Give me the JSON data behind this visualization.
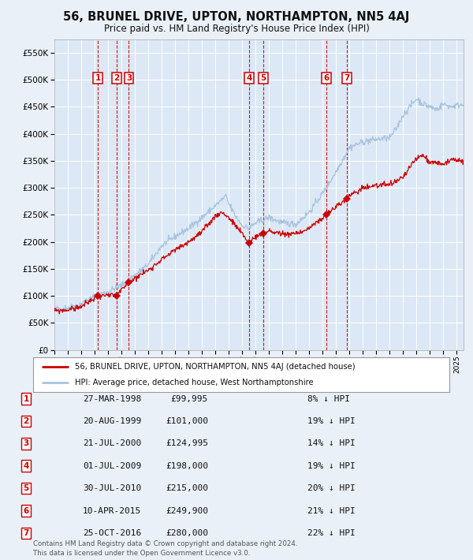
{
  "title": "56, BRUNEL DRIVE, UPTON, NORTHAMPTON, NN5 4AJ",
  "subtitle": "Price paid vs. HM Land Registry's House Price Index (HPI)",
  "legend_line1": "56, BRUNEL DRIVE, UPTON, NORTHAMPTON, NN5 4AJ (detached house)",
  "legend_line2": "HPI: Average price, detached house, West Northamptonshire",
  "footnote1": "Contains HM Land Registry data © Crown copyright and database right 2024.",
  "footnote2": "This data is licensed under the Open Government Licence v3.0.",
  "transactions": [
    {
      "id": 1,
      "date": "27-MAR-1998",
      "price": 99995,
      "pct": "8%",
      "year_x": 1998.23
    },
    {
      "id": 2,
      "date": "20-AUG-1999",
      "price": 101000,
      "pct": "19%",
      "year_x": 1999.63
    },
    {
      "id": 3,
      "date": "21-JUL-2000",
      "price": 124995,
      "pct": "14%",
      "year_x": 2000.55
    },
    {
      "id": 4,
      "date": "01-JUL-2009",
      "price": 198000,
      "pct": "19%",
      "year_x": 2009.5
    },
    {
      "id": 5,
      "date": "30-JUL-2010",
      "price": 215000,
      "pct": "20%",
      "year_x": 2010.58
    },
    {
      "id": 6,
      "date": "10-APR-2015",
      "price": 249900,
      "pct": "21%",
      "year_x": 2015.27
    },
    {
      "id": 7,
      "date": "25-OCT-2016",
      "price": 280000,
      "pct": "22%",
      "year_x": 2016.82
    }
  ],
  "hpi_color": "#a8c4e0",
  "price_color": "#cc0000",
  "dashed_color": "#cc0000",
  "bg_color": "#eaf0f8",
  "plot_bg": "#dce8f5",
  "grid_color": "#ffffff",
  "box_color": "#cc0000",
  "ylim": [
    0,
    575000
  ],
  "xlim_start": 1995.0,
  "xlim_end": 2025.5,
  "hpi_anchors_x": [
    1995,
    1996,
    1997,
    1998,
    1999,
    2000,
    2001,
    2002,
    2003,
    2004,
    2005,
    2006,
    2007,
    2007.8,
    2008,
    2008.5,
    2009,
    2009.5,
    2010,
    2010.5,
    2011,
    2012,
    2013,
    2014,
    2015,
    2016,
    2017,
    2018,
    2019,
    2020,
    2020.5,
    2021,
    2021.5,
    2022,
    2022.5,
    2023,
    2023.5,
    2024,
    2024.5,
    2025.5
  ],
  "hpi_anchors_y": [
    75000,
    78000,
    85000,
    100000,
    108000,
    120000,
    138000,
    158000,
    193000,
    210000,
    225000,
    245000,
    267000,
    285000,
    270000,
    248000,
    230000,
    225000,
    235000,
    240000,
    245000,
    235000,
    233000,
    255000,
    290000,
    330000,
    375000,
    385000,
    390000,
    392000,
    410000,
    435000,
    450000,
    465000,
    455000,
    450000,
    445000,
    455000,
    450000,
    455000
  ],
  "price_anchors_x": [
    1995,
    1996,
    1997,
    1998.23,
    1999.63,
    2000.55,
    2001,
    2002,
    2003,
    2004,
    2005,
    2006,
    2007,
    2007.5,
    2008,
    2009,
    2009.5,
    2010,
    2010.58,
    2011,
    2012,
    2013,
    2014,
    2015.27,
    2016,
    2016.82,
    2017,
    2018,
    2019,
    2020,
    2021,
    2022,
    2022.5,
    2023,
    2024,
    2024.5,
    2025.5
  ],
  "price_anchors_y": [
    72000,
    74000,
    80000,
    99995,
    101000,
    124995,
    133000,
    148000,
    168000,
    185000,
    200000,
    218000,
    248000,
    255000,
    245000,
    215000,
    198000,
    210000,
    215000,
    220000,
    215000,
    215000,
    225000,
    249900,
    265000,
    280000,
    285000,
    300000,
    305000,
    305000,
    320000,
    355000,
    360000,
    348000,
    345000,
    350000,
    350000
  ]
}
